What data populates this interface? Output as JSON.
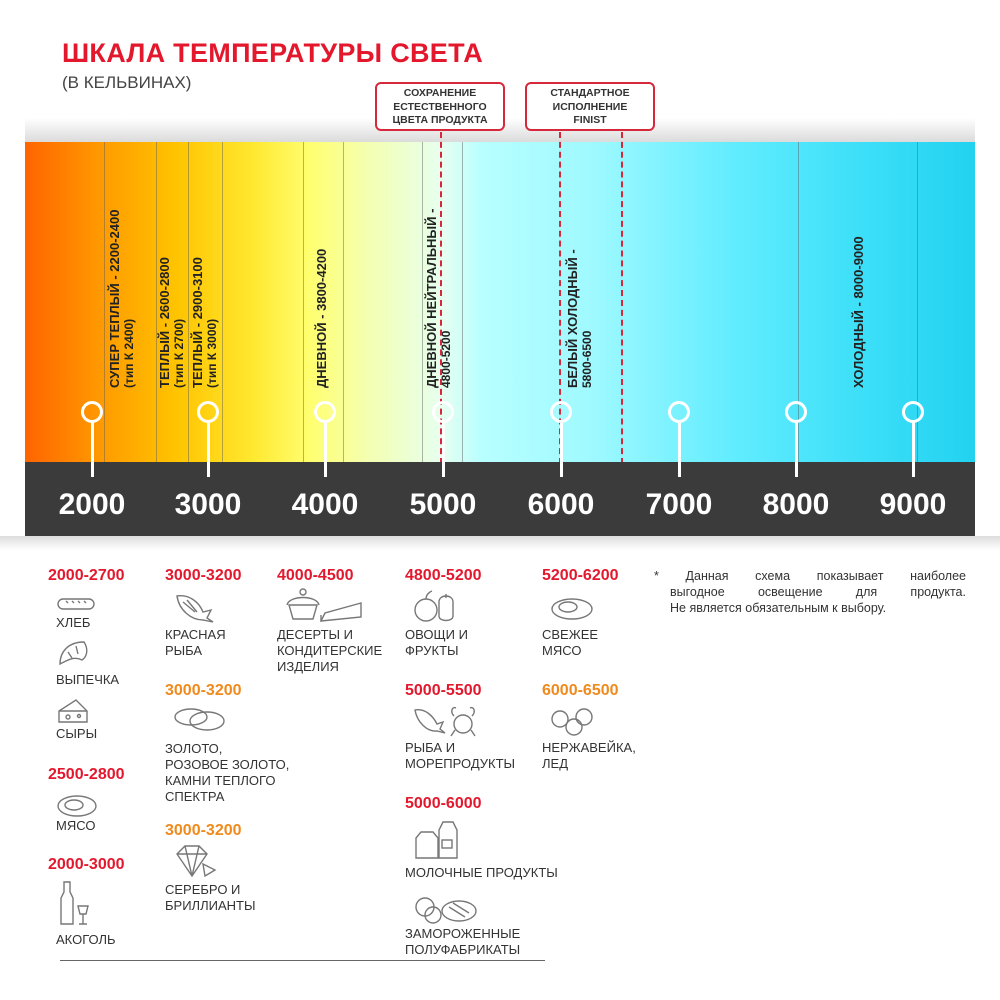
{
  "header": {
    "title": "ШКАЛА ТЕМПЕРАТУРЫ СВЕТА",
    "subtitle": "(В КЕЛЬВИНАХ)"
  },
  "callouts": [
    {
      "lines": [
        "СОХРАНЕНИЕ",
        "ЕСТЕСТВЕННОГО",
        "ЦВЕТА ПРОДУКТА"
      ]
    },
    {
      "lines": [
        "СТАНДАРТНОЕ",
        "ИСПОЛНЕНИЕ",
        "FINIST"
      ]
    }
  ],
  "zones": [
    {
      "line1": "СУПЕР ТЕПЛЫЙ - 2200-2400",
      "line2": "(тип К 2400)"
    },
    {
      "line1": "ТЕПЛЫЙ - 2600-2800",
      "line2": "(тип К 2700)"
    },
    {
      "line1": "ТЕПЛЫЙ - 2900-3100",
      "line2": "(тип К 3000)"
    },
    {
      "line1": "ДНЕВНОЙ - 3800-4200"
    },
    {
      "line1": "ДНЕВНОЙ НЕЙТРАЛЬНЫЙ -",
      "line2": "4800-5200"
    },
    {
      "line1": "БЕЛЫЙ ХОЛОДНЫЙ -",
      "line2": "5800-6500"
    },
    {
      "line1": "ХОЛОДНЫЙ - 8000-9000"
    }
  ],
  "scale": {
    "ticks": [
      "2000",
      "3000",
      "4000",
      "5000",
      "6000",
      "7000",
      "8000",
      "9000"
    ],
    "unit": "K"
  },
  "colors": {
    "accent_red": "#e3182d",
    "accent_orange": "#f08a1c",
    "axis": "#3b3b3b",
    "dashed_marker": "#d6283a"
  },
  "products": {
    "c1": [
      {
        "range": "2000-2700",
        "items": [
          {
            "icon": "bread-icon",
            "label": [
              "ХЛЕБ"
            ]
          },
          {
            "icon": "croissant-icon",
            "label": [
              "ВЫПЕЧКА"
            ]
          },
          {
            "icon": "cheese-icon",
            "label": [
              "СЫРЫ"
            ]
          }
        ]
      },
      {
        "range": "2500-2800",
        "items": [
          {
            "icon": "meat-icon",
            "label": [
              "МЯСО"
            ]
          }
        ]
      },
      {
        "range": "2000-3000",
        "items": [
          {
            "icon": "bottle-glass-icon",
            "label": [
              "АКОГОЛЬ"
            ]
          }
        ]
      }
    ],
    "c2": [
      {
        "range": "3000-3200",
        "items": [
          {
            "icon": "fish-icon",
            "label": [
              "КРАСНАЯ",
              "РЫБА"
            ]
          }
        ]
      },
      {
        "range": "3000-3200",
        "items": [
          {
            "icon": "rings-icon",
            "label": [
              "ЗОЛОТО,",
              "РОЗОВОЕ ЗОЛОТО,",
              "КАМНИ ТЕПЛОГО",
              "СПЕКТРА"
            ]
          }
        ]
      },
      {
        "range": "3000-3200",
        "items": [
          {
            "icon": "diamond-icon",
            "label": [
              "СЕРЕБРО И",
              "БРИЛЛИАНТЫ"
            ]
          }
        ]
      }
    ],
    "c3": [
      {
        "range": "4000-4500",
        "items": [
          {
            "icon": "cake-icon",
            "label": [
              "ДЕСЕРТЫ И",
              "КОНДИТЕРСКИЕ",
              "ИЗДЕЛИЯ"
            ]
          }
        ]
      }
    ],
    "c4": [
      {
        "range": "4800-5200",
        "items": [
          {
            "icon": "vegetables-icon",
            "label": [
              "ОВОЩИ И",
              "ФРУКТЫ"
            ]
          }
        ]
      },
      {
        "range": "5000-5500",
        "items": [
          {
            "icon": "fish-crab-icon",
            "label": [
              "РЫБА И",
              "МОРЕПРОДУКТЫ"
            ]
          }
        ]
      },
      {
        "range": "5000-6000",
        "items": [
          {
            "icon": "milk-icon",
            "label": [
              "МОЛОЧНЫЕ ПРОДУКТЫ"
            ]
          },
          {
            "icon": "frozen-food-icon",
            "label": [
              "ЗАМОРОЖЕННЫЕ",
              "ПОЛУФАБРИКАТЫ"
            ]
          }
        ]
      }
    ],
    "c5": [
      {
        "range": "5200-6200",
        "items": [
          {
            "icon": "steak-icon",
            "label": [
              "СВЕЖЕЕ",
              "МЯСО"
            ]
          }
        ]
      },
      {
        "range": "6000-6500",
        "items": [
          {
            "icon": "ice-icon",
            "label": [
              "НЕРЖАВЕЙКА,",
              "ЛЕД"
            ]
          }
        ]
      }
    ]
  },
  "footnote": {
    "lines": [
      "*  Данная схема показывает наиболее",
      "выгодное освещение для продукта.",
      "Не является обязательным к выбору."
    ]
  }
}
